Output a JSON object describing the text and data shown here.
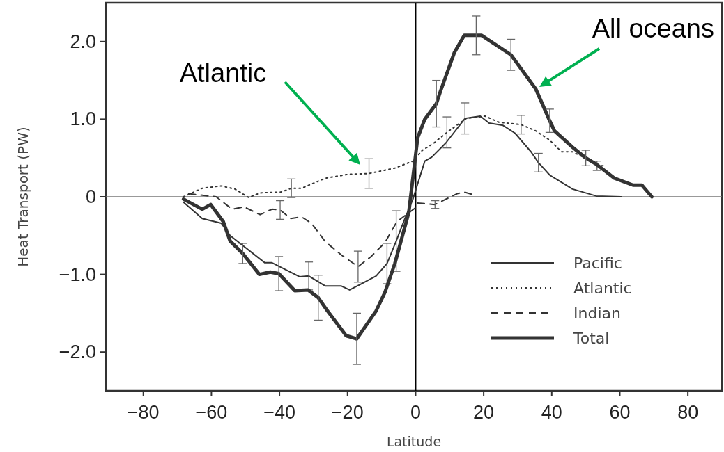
{
  "chart_data": {
    "type": "line",
    "xlabel": "Latitude",
    "ylabel": "Heat Transport (PW)",
    "xlim": [
      -91,
      90
    ],
    "ylim": [
      -2.5,
      2.5
    ],
    "xticks": [
      {
        "value": -80,
        "label": "−80"
      },
      {
        "value": -60,
        "label": "−60"
      },
      {
        "value": -40,
        "label": "−40"
      },
      {
        "value": -20,
        "label": "−20"
      },
      0,
      20,
      40,
      60,
      80
    ],
    "yticks": [
      {
        "value": -2,
        "label": "−2.0"
      },
      {
        "value": -1,
        "label": "−1.0"
      },
      0,
      {
        "value": 1,
        "label": "1.0"
      },
      {
        "value": 2,
        "label": "2.0"
      }
    ],
    "grid": false,
    "legend": "bottom right",
    "marker": "none",
    "ref_lines": [
      {
        "axis": "y",
        "value": 0,
        "color": "#777777"
      },
      {
        "axis": "x",
        "value": 0,
        "color": "#000000"
      }
    ],
    "annotations": [
      "Atlantic",
      "All oceans"
    ],
    "series": [
      {
        "name": "Pacific",
        "color": "#333333",
        "line_style": "solid",
        "x": [
          -68.2,
          -62.7,
          -57.1,
          -54.5,
          -44.3,
          -42.2,
          -34.1,
          -31.4,
          -26.5,
          -21.8,
          -19.4,
          -16.3,
          -11.6,
          -8.4,
          -5.7,
          -3.5,
          -0.8,
          2.7,
          4.7,
          8.8,
          14.5,
          19,
          21.6,
          25.7,
          29.2,
          33.9,
          36.1,
          39.4,
          46.1,
          53.1,
          60.4
        ],
        "values": [
          -0.07,
          -0.28,
          -0.34,
          -0.5,
          -0.85,
          -0.85,
          -1.03,
          -1.02,
          -1.15,
          -1.15,
          -1.2,
          -1.13,
          -1.02,
          -0.86,
          -0.57,
          -0.32,
          -0.03,
          0.46,
          0.51,
          0.69,
          1.01,
          1.04,
          0.95,
          0.92,
          0.82,
          0.58,
          0.44,
          0.28,
          0.1,
          0.01,
          0
        ],
        "errors": [
          null,
          null,
          null,
          null,
          null,
          null,
          null,
          0.18,
          null,
          null,
          null,
          null,
          null,
          0.26,
          0.39,
          null,
          null,
          null,
          null,
          null,
          0.2,
          null,
          null,
          null,
          null,
          null,
          0.12,
          null,
          null,
          null,
          null
        ]
      },
      {
        "name": "Atlantic",
        "color": "#333333",
        "line_style": "dotted",
        "x": [
          -68.2,
          -62.7,
          -57.1,
          -53.1,
          -49,
          -45.7,
          -39.6,
          -36.5,
          -33.5,
          -26.5,
          -19.8,
          -13.7,
          -6.1,
          -0.8,
          2,
          5.3,
          9.2,
          14.9,
          20.4,
          24.5,
          31,
          35.3,
          39.4,
          42.9,
          46.1,
          51.6,
          53.3,
          55.1
        ],
        "values": [
          0,
          0.11,
          0.14,
          0.1,
          -0.01,
          0.05,
          0.06,
          0.11,
          0.11,
          0.24,
          0.29,
          0.3,
          0.37,
          0.46,
          0.6,
          0.69,
          0.83,
          1.01,
          1.04,
          0.96,
          0.93,
          0.85,
          0.73,
          0.58,
          0.58,
          0.46,
          0.4,
          0.4
        ],
        "errors": [
          null,
          null,
          null,
          null,
          null,
          null,
          null,
          0.12,
          null,
          null,
          null,
          0.19,
          null,
          null,
          null,
          null,
          0.2,
          null,
          null,
          null,
          0.12,
          null,
          null,
          null,
          null,
          null,
          0.06,
          null
        ]
      },
      {
        "name": "Indian",
        "color": "#333333",
        "line_style": "dashed",
        "x": [
          -66.7,
          -58.6,
          -53.9,
          -50.4,
          -45.7,
          -42.2,
          -39.8,
          -36.7,
          -33.5,
          -30.6,
          -26.5,
          -21.8,
          -16.9,
          -13.1,
          -9,
          -5.5,
          0,
          0.6,
          5.7,
          12.2,
          14.3,
          17.6
        ],
        "values": [
          0.04,
          0,
          -0.16,
          -0.13,
          -0.23,
          -0.16,
          -0.17,
          -0.28,
          -0.26,
          -0.34,
          -0.58,
          -0.75,
          -0.9,
          -0.77,
          -0.59,
          -0.32,
          -0.14,
          -0.08,
          -0.1,
          0.04,
          0.06,
          0.02
        ],
        "errors": [
          null,
          null,
          null,
          null,
          null,
          null,
          0.12,
          null,
          null,
          null,
          null,
          null,
          0.2,
          null,
          null,
          null,
          null,
          null,
          0.05,
          null,
          null,
          null
        ]
      },
      {
        "name": "Total",
        "color": "#333333",
        "line_style": "solid",
        "x": [
          -68.2,
          -62.7,
          -60.2,
          -56.5,
          -54.5,
          -50.8,
          -45.9,
          -42.7,
          -40.2,
          -35.5,
          -31.6,
          -28.6,
          -25.9,
          -20.4,
          -17.3,
          -11.6,
          -9,
          -6.1,
          -2,
          0.6,
          2.7,
          6.1,
          7.3,
          11.4,
          14.3,
          17.8,
          19.4,
          28,
          35.3,
          39.4,
          40.8,
          46.1,
          50,
          53.1,
          58.4,
          63.9,
          66.5,
          69.4
        ],
        "values": [
          -0.03,
          -0.16,
          -0.1,
          -0.32,
          -0.57,
          -0.73,
          -1,
          -0.97,
          -0.99,
          -1.21,
          -1.2,
          -1.3,
          -1.47,
          -1.79,
          -1.83,
          -1.47,
          -1.23,
          -0.86,
          -0.2,
          0.76,
          1,
          1.2,
          1.36,
          1.86,
          2.08,
          2.08,
          2.08,
          1.83,
          1.39,
          0.98,
          0.85,
          0.64,
          0.5,
          0.42,
          0.24,
          0.15,
          0.15,
          0
        ],
        "errors": [
          null,
          null,
          null,
          null,
          null,
          0.13,
          null,
          null,
          0.22,
          null,
          null,
          0.29,
          null,
          null,
          0.33,
          null,
          null,
          null,
          null,
          null,
          null,
          0.3,
          null,
          null,
          null,
          0.25,
          null,
          0.2,
          null,
          0.15,
          null,
          null,
          0.1,
          null,
          null,
          null,
          null,
          null
        ]
      }
    ]
  }
}
